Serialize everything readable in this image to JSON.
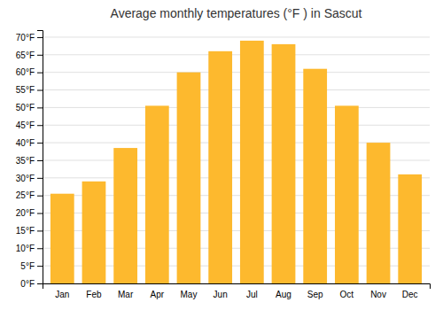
{
  "chart_data": {
    "type": "bar",
    "title": "Average monthly temperatures (°F ) in Sascut",
    "categories": [
      "Jan",
      "Feb",
      "Mar",
      "Apr",
      "May",
      "Jun",
      "Jul",
      "Aug",
      "Sep",
      "Oct",
      "Nov",
      "Dec"
    ],
    "values": [
      25.5,
      29.0,
      38.5,
      50.5,
      60.0,
      66.0,
      69.0,
      68.0,
      61.0,
      50.5,
      40.0,
      31.0
    ],
    "color": "#FDB92E",
    "ylim": [
      0,
      72
    ],
    "yticks": [
      {
        "value": 0,
        "label": "0°F"
      },
      {
        "value": 5,
        "label": "5°F"
      },
      {
        "value": 10,
        "label": "10°F"
      },
      {
        "value": 15,
        "label": "15°F"
      },
      {
        "value": 20,
        "label": "20°F"
      },
      {
        "value": 25,
        "label": "25°F"
      },
      {
        "value": 30,
        "label": "30°F"
      },
      {
        "value": 35,
        "label": "35°F"
      },
      {
        "value": 40,
        "label": "40°F"
      },
      {
        "value": 45,
        "label": "45°F"
      },
      {
        "value": 50,
        "label": "50°F"
      },
      {
        "value": 55,
        "label": "55°F"
      },
      {
        "value": 60,
        "label": "60°F"
      },
      {
        "value": 65,
        "label": "65°F"
      },
      {
        "value": 70,
        "label": "70°F"
      }
    ],
    "grid": true
  }
}
